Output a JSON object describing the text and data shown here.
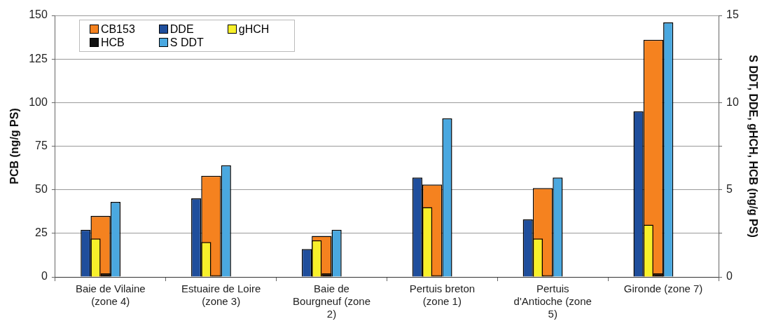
{
  "chart_data": {
    "type": "bar",
    "ylabel": "PCB (ng/g PS)",
    "y2label": "S DDT, DDE, gHCH, HCB (ng/g PS)",
    "categories": [
      "Baie de Vilaine (zone 4)",
      "Estuaire de Loire  (zone 3)",
      "Baie de Bourgneuf (zone 2)",
      "Pertuis breton (zone 1)",
      "Pertuis d'Antioche (zone 5)",
      "Gironde (zone 7)"
    ],
    "series": [
      {
        "name": "CB153",
        "color": "#f5821f",
        "values": [
          35,
          58,
          23.5,
          53,
          51,
          136
        ]
      },
      {
        "name": "DDE",
        "color": "#1f4e9c",
        "axis": "y2",
        "values": [
          2.7,
          4.5,
          1.6,
          5.7,
          3.3,
          9.5
        ]
      },
      {
        "name": "gHCH",
        "color": "#f7f02a",
        "axis": "y2",
        "values": [
          2.2,
          2.0,
          2.1,
          4.0,
          2.2,
          3.0
        ]
      },
      {
        "name": "HCB",
        "color": "#111111",
        "axis": "y2",
        "values": [
          0.2,
          0.1,
          0.2,
          0.1,
          0.1,
          0.2
        ]
      },
      {
        "name": "S DDT",
        "color": "#4aa8e0",
        "axis": "y2",
        "values": [
          4.3,
          6.4,
          2.7,
          9.1,
          5.7,
          14.6
        ]
      }
    ],
    "ylim": [
      0,
      150
    ],
    "yticks": [
      0,
      25,
      50,
      75,
      100,
      125,
      150
    ],
    "y2lim": [
      0,
      15
    ],
    "y2ticks": [
      0,
      {
        "value": 2.5,
        "label": null
      },
      5,
      {
        "value": 7.5,
        "label": null
      },
      10,
      {
        "value": 12.5,
        "label": null
      },
      15
    ],
    "grid": "y",
    "legend": "top left"
  }
}
